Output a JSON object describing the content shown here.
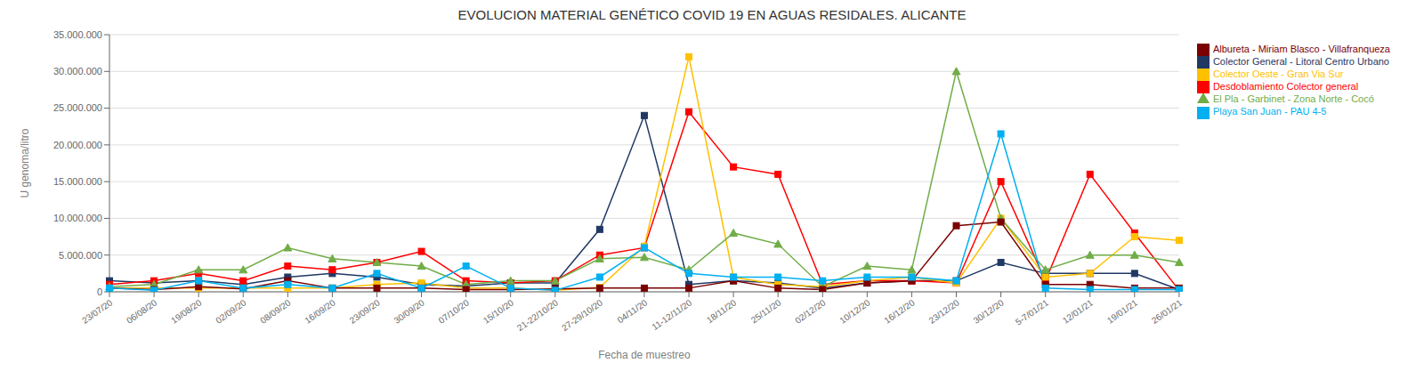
{
  "chart_data": {
    "type": "line",
    "title": "EVOLUCION  MATERIAL GENÉTICO COVID 19 EN AGUAS RESIDALES. ALICANTE",
    "xlabel": "Fecha de muestreo",
    "ylabel": "U genoma/litro",
    "ylim": [
      0,
      35000000
    ],
    "yticks": [
      0,
      {
        "value": 5000000,
        "label": "5.000.000"
      },
      {
        "value": 10000000,
        "label": "10.000.000"
      },
      {
        "value": 15000000,
        "label": "15.000.000"
      },
      {
        "value": 20000000,
        "label": "20.000.000"
      },
      {
        "value": 25000000,
        "label": "25.000.000"
      },
      {
        "value": 30000000,
        "label": "30.000.000"
      },
      {
        "value": 35000000,
        "label": "35.000.000"
      }
    ],
    "grid": true,
    "legend": "right",
    "categories": [
      "23/07/20",
      "06/08/20",
      "19/08/20",
      "02/09/20",
      "08/09/20",
      "16/09/20",
      "23/09/20",
      "30/09/20",
      "07/10/20",
      "15/10/20",
      "21-22/10/20",
      "27-29/10/20",
      "04/11/20",
      "11-12/11/20",
      "18/11/20",
      "25/11/20",
      "02/12/20",
      "10/12/20",
      "16/12/20",
      "23/12/20",
      "30/12/20",
      "5-7/01/21",
      "12/01/21",
      "19/01/21",
      "26/01/21"
    ],
    "series": [
      {
        "name": "Colector General - Litoral Centro Urbano",
        "color": "#1F3864",
        "marker": "square",
        "values": [
          1500000,
          1200000,
          1500000,
          1000000,
          2000000,
          2500000,
          2000000,
          1000000,
          800000,
          1200000,
          1200000,
          8500000,
          24000000,
          1000000,
          1500000,
          1200000,
          500000,
          1200000,
          1500000,
          1500000,
          4000000,
          2500000,
          2500000,
          2500000,
          300000
        ]
      },
      {
        "name": "Desdoblamiento Colector general",
        "color": "#FF0000",
        "marker": "square",
        "values": [
          1000000,
          1500000,
          2500000,
          1500000,
          3500000,
          3000000,
          4000000,
          5500000,
          1500000,
          1200000,
          1500000,
          5000000,
          6000000,
          24500000,
          17000000,
          16000000,
          1000000,
          1500000,
          1500000,
          1200000,
          15000000,
          1500000,
          16000000,
          8000000,
          200000
        ]
      },
      {
        "name": "Colector Oeste - Gran Via Sur",
        "color": "#FFC000",
        "marker": "square",
        "values": [
          500000,
          500000,
          500000,
          500000,
          500000,
          500000,
          1000000,
          1200000,
          500000,
          500000,
          200000,
          600000,
          6200000,
          32000000,
          2000000,
          1000000,
          700000,
          1500000,
          2000000,
          1200000,
          10000000,
          2000000,
          2500000,
          7500000,
          7000000
        ]
      },
      {
        "name": "El Pla - Garbinet - Zona Norte - Cocó",
        "color": "#70AD47",
        "marker": "triangle",
        "values": [
          700000,
          1000000,
          3000000,
          3000000,
          6000000,
          4500000,
          4000000,
          3500000,
          1000000,
          1500000,
          1500000,
          4500000,
          4700000,
          3000000,
          8000000,
          6500000,
          700000,
          3500000,
          3000000,
          30000000,
          10000000,
          3000000,
          5000000,
          5000000,
          4000000
        ]
      },
      {
        "name": "Albureta - Miriam Blasco - Villafranqueza",
        "color": "#7B0000",
        "marker": "square",
        "values": [
          500000,
          300000,
          700000,
          400000,
          1500000,
          500000,
          500000,
          500000,
          300000,
          300000,
          400000,
          500000,
          500000,
          500000,
          1500000,
          500000,
          300000,
          1200000,
          1500000,
          9000000,
          9500000,
          1000000,
          1000000,
          500000,
          500000
        ]
      },
      {
        "name": "Playa San Juan - PAU 4-5",
        "color": "#00B0F0",
        "marker": "square",
        "values": [
          500000,
          200000,
          1500000,
          500000,
          1000000,
          500000,
          2500000,
          500000,
          3500000,
          500000,
          200000,
          2000000,
          6000000,
          2500000,
          2000000,
          2000000,
          1500000,
          2000000,
          2000000,
          1500000,
          21500000,
          500000,
          300000,
          300000,
          300000
        ]
      }
    ]
  }
}
